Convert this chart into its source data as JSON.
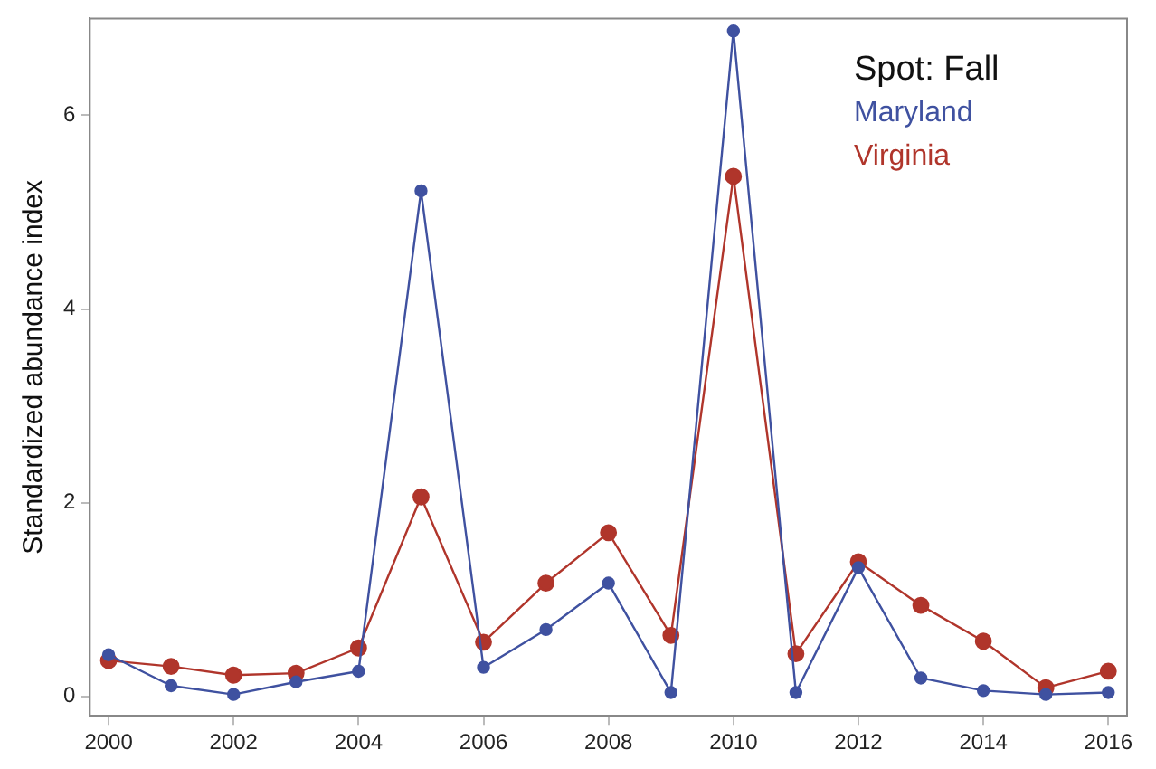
{
  "chart_data": {
    "type": "line",
    "ylabel": "Standardized abundance index",
    "legend_title": "Spot: Fall",
    "legend": "top right",
    "marker": "circle",
    "grid": false,
    "x": [
      2000,
      2001,
      2002,
      2003,
      2004,
      2005,
      2006,
      2007,
      2008,
      2009,
      2010,
      2011,
      2012,
      2013,
      2014,
      2015,
      2016
    ],
    "xlim": [
      1999.7,
      2016.3
    ],
    "xticks": [
      2000,
      2002,
      2004,
      2006,
      2008,
      2010,
      2012,
      2014,
      2016
    ],
    "ylim": [
      -0.2,
      7.0
    ],
    "yticks": [
      0,
      2,
      4,
      6
    ],
    "series": [
      {
        "name": "Maryland",
        "color": "#3f51a0",
        "values": [
          0.43,
          0.11,
          0.02,
          0.15,
          0.26,
          5.22,
          0.3,
          0.69,
          1.17,
          0.04,
          6.87,
          0.04,
          1.33,
          0.19,
          0.06,
          0.02,
          0.04
        ]
      },
      {
        "name": "Virginia",
        "color": "#b0352b",
        "values": [
          0.37,
          0.31,
          0.22,
          0.24,
          0.5,
          2.06,
          0.56,
          1.17,
          1.69,
          0.63,
          5.37,
          0.44,
          1.39,
          0.94,
          0.57,
          0.09,
          0.26
        ]
      }
    ]
  }
}
